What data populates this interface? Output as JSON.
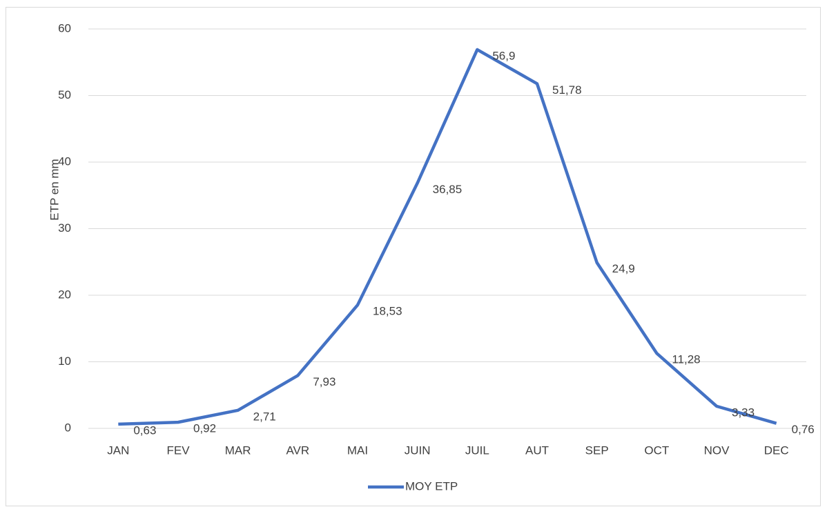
{
  "chart_data": {
    "type": "line",
    "y_label": "ETP en mm",
    "categories": [
      "JAN",
      "FEV",
      "MAR",
      "AVR",
      "MAI",
      "JUIN",
      "JUIL",
      "AUT",
      "SEP",
      "OCT",
      "NOV",
      "DEC"
    ],
    "series": [
      {
        "name": "MOY ETP",
        "color": "#4472c4",
        "values": [
          0.63,
          0.92,
          2.71,
          7.93,
          18.53,
          36.85,
          56.9,
          51.78,
          24.9,
          11.28,
          3.33,
          0.76
        ],
        "value_labels": [
          "0,63",
          "0,92",
          "2,71",
          "7,93",
          "18,53",
          "36,85",
          "56,9",
          "51,78",
          "24,9",
          "11,28",
          "3,33",
          "0,76"
        ]
      }
    ],
    "ylim": [
      0,
      60
    ],
    "yticks": [
      0,
      10,
      20,
      30,
      40,
      50,
      60
    ],
    "grid": true,
    "legend": "bottom"
  }
}
